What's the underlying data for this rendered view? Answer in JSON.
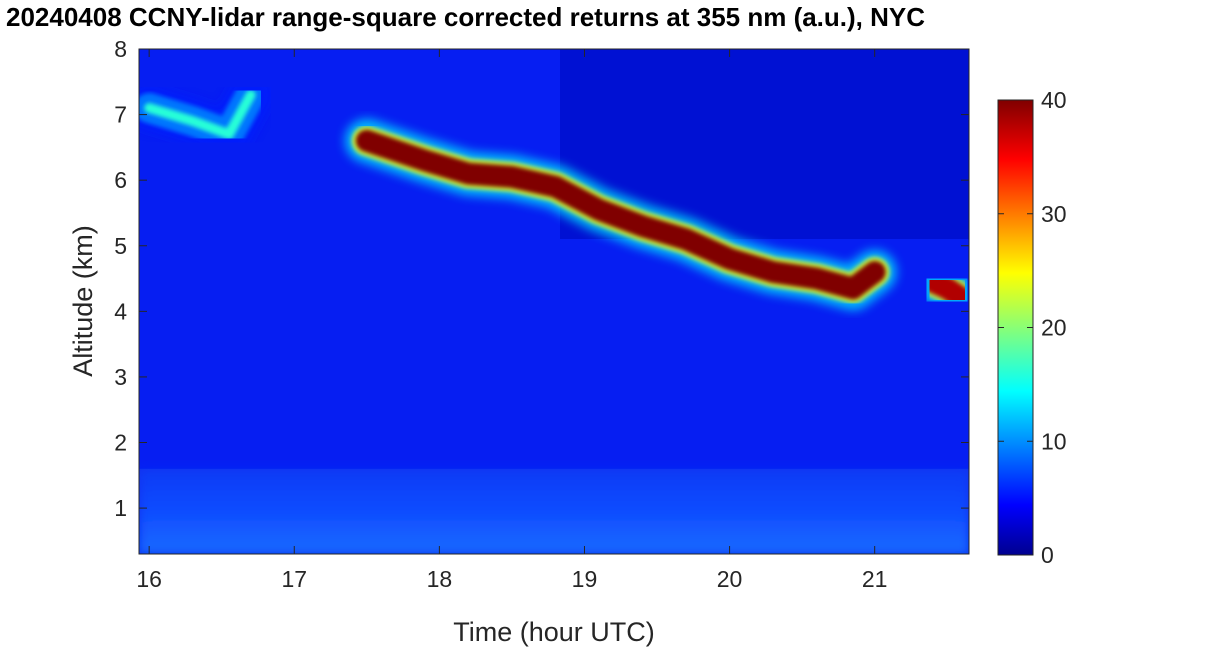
{
  "chart_data": {
    "type": "heatmap",
    "title": "20240408 CCNY-lidar range-square corrected returns at 355 nm (a.u.), NYC",
    "xlabel": "Time (hour UTC)",
    "ylabel": "Altitude (km)",
    "xlim": [
      15.93,
      21.65
    ],
    "ylim": [
      0.3,
      8
    ],
    "xticks": [
      16,
      17,
      18,
      19,
      20,
      21
    ],
    "yticks": [
      1,
      2,
      3,
      4,
      5,
      6,
      7,
      8
    ],
    "colorbar": {
      "colormap": "jet",
      "range": [
        0,
        40
      ],
      "ticks": [
        0,
        10,
        20,
        30,
        40
      ]
    },
    "features": [
      {
        "name": "boundary-layer",
        "x_start": 15.93,
        "x_end": 21.65,
        "y_bottom": 0.3,
        "y_top": 1.6,
        "value": 9
      },
      {
        "name": "free-troposphere",
        "x_start": 15.93,
        "x_end": 21.65,
        "y_bottom": 1.6,
        "y_top": 8.0,
        "value": 4
      },
      {
        "name": "cirrus-early",
        "points": [
          [
            16.0,
            7.1
          ],
          [
            16.3,
            6.9
          ],
          [
            16.55,
            6.7
          ],
          [
            16.7,
            7.3
          ]
        ],
        "value": 16
      },
      {
        "name": "cirrus-band",
        "points": [
          [
            17.5,
            6.6
          ],
          [
            17.9,
            6.3
          ],
          [
            18.2,
            6.1
          ],
          [
            18.5,
            6.05
          ],
          [
            18.8,
            5.9
          ],
          [
            19.1,
            5.55
          ],
          [
            19.4,
            5.3
          ],
          [
            19.7,
            5.1
          ],
          [
            20.0,
            4.8
          ],
          [
            20.3,
            4.6
          ],
          [
            20.6,
            4.5
          ],
          [
            20.85,
            4.35
          ],
          [
            21.0,
            4.6
          ]
        ],
        "value": 40
      },
      {
        "name": "cloud-late",
        "points": [
          [
            21.4,
            4.45
          ],
          [
            21.5,
            4.35
          ],
          [
            21.6,
            4.2
          ]
        ],
        "value": 38
      }
    ]
  }
}
